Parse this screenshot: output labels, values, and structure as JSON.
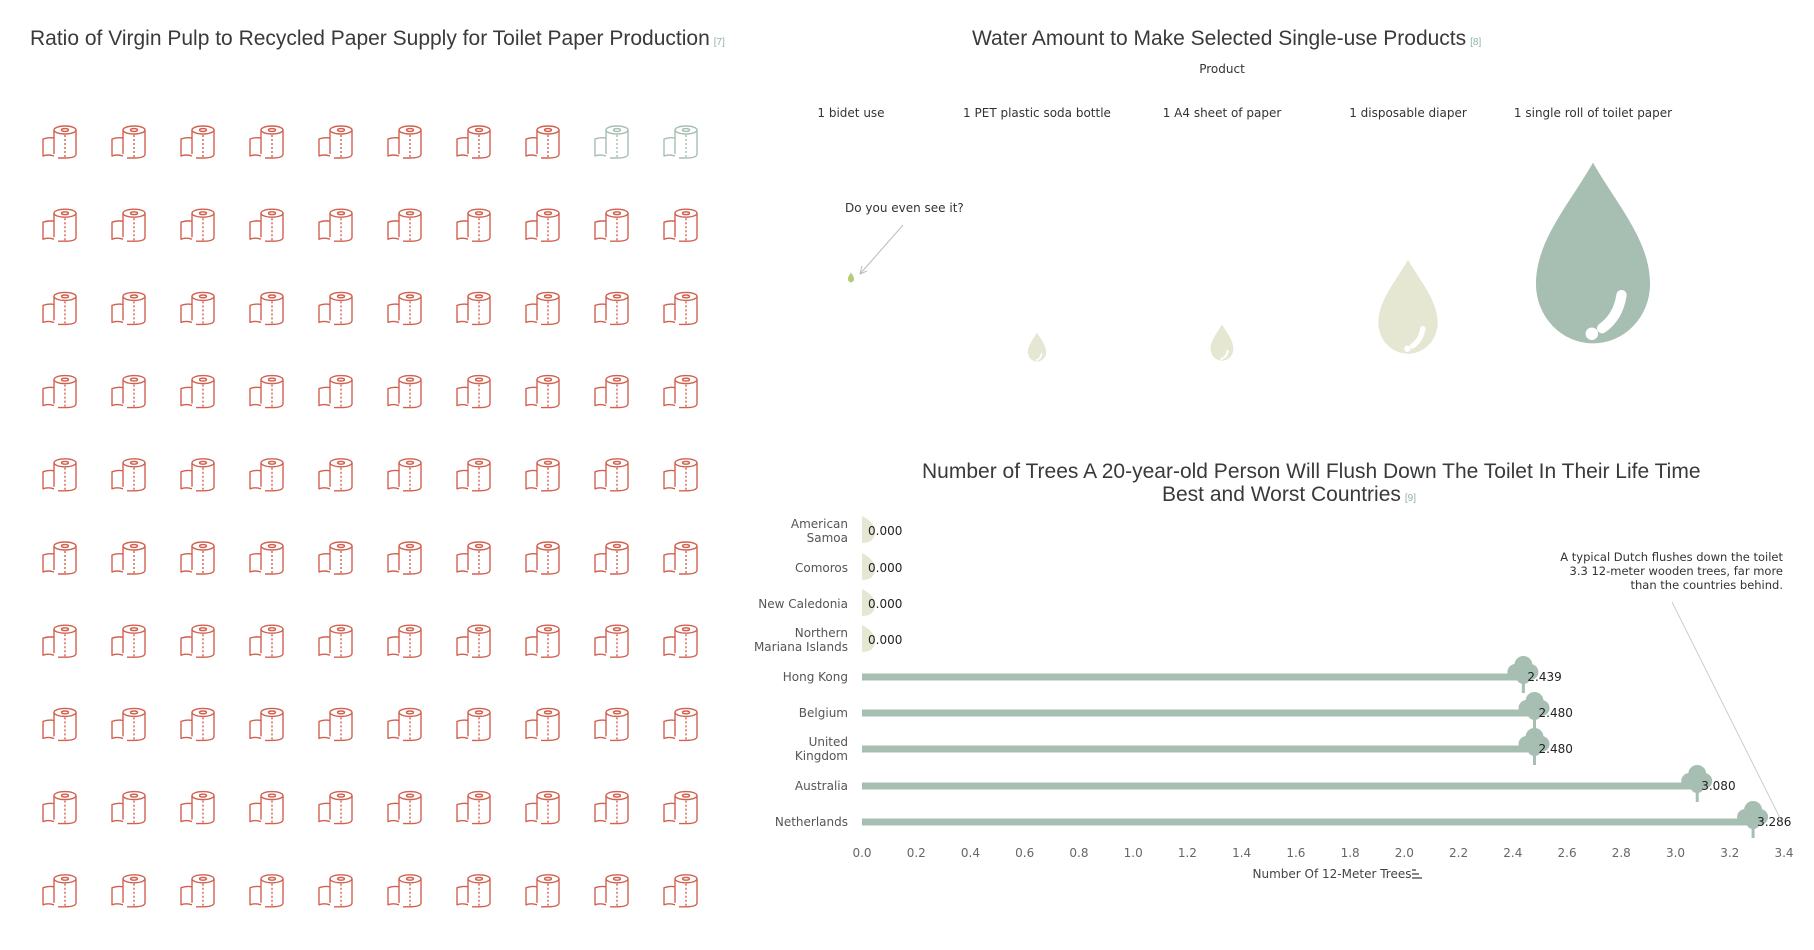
{
  "waffle": {
    "title": "Ratio of Virgin Pulp to Recycled Paper Supply for Toilet Paper Production",
    "ref": "[7]",
    "total": 100,
    "recycled": 2,
    "virgin_color": "#d2604f",
    "recycled_color": "#a7bfb2",
    "icon": "toilet-paper-roll-icon"
  },
  "water": {
    "title": "Water Amount to Make Selected Single-use Products",
    "ref": "[8]",
    "axis_label": "Product",
    "annotation": "Do you even see it?",
    "icon": "water-drop-icon",
    "products": [
      {
        "label": "1 bidet use",
        "rel": 0.04,
        "color": "#b6cc78"
      },
      {
        "label": "1 PET plastic soda bottle",
        "rel": 0.16,
        "color": "#e6e7d3"
      },
      {
        "label": "1 A4 sheet of paper",
        "rel": 0.2,
        "color": "#e6e7d3"
      },
      {
        "label": "1 disposable diaper",
        "rel": 0.52,
        "color": "#e6e7d3"
      },
      {
        "label": "1 single roll of toilet paper",
        "rel": 1.0,
        "color": "#a7bfb2"
      }
    ]
  },
  "trees_chart": {
    "title_line1": "Number of Trees A 20-year-old Person Will Flush Down The Toilet In Their Life Time",
    "title_line2": "Best and Worst Countries",
    "ref": "[9]",
    "annotation_lines": [
      "A typical Dutch flushes down the toilet",
      "3.3 12-meter wooden trees, far more",
      "than the countries behind."
    ],
    "icon": "tree-icon"
  },
  "chart_data": {
    "type": "bar",
    "orientation": "horizontal",
    "title": "Number of Trees A 20-year-old Person Will Flush Down The Toilet In Their Life Time Best and Worst Countries",
    "xlabel": "Number Of 12-Meter Trees",
    "xlim": [
      0,
      3.4
    ],
    "xticks": [
      "0.0",
      "0.2",
      "0.4",
      "0.6",
      "0.8",
      "1.0",
      "1.2",
      "1.4",
      "1.6",
      "1.8",
      "2.0",
      "2.2",
      "2.4",
      "2.6",
      "2.8",
      "3.0",
      "3.2",
      "3.4"
    ],
    "categories": [
      "American Samoa",
      "Comoros",
      "New Caledonia",
      "Northern Mariana Islands",
      "Hong Kong",
      "Belgium",
      "United Kingdom",
      "Australia",
      "Netherlands"
    ],
    "values": [
      0.0,
      0.0,
      0.0,
      0.0,
      2.439,
      2.48,
      2.48,
      3.08,
      3.286
    ],
    "value_labels": [
      "0.000",
      "0.000",
      "0.000",
      "0.000",
      "2.439",
      "2.480",
      "2.480",
      "3.080",
      "3.286"
    ],
    "bar_color": "#a7bfb2",
    "zero_color": "#e6e7d3"
  }
}
